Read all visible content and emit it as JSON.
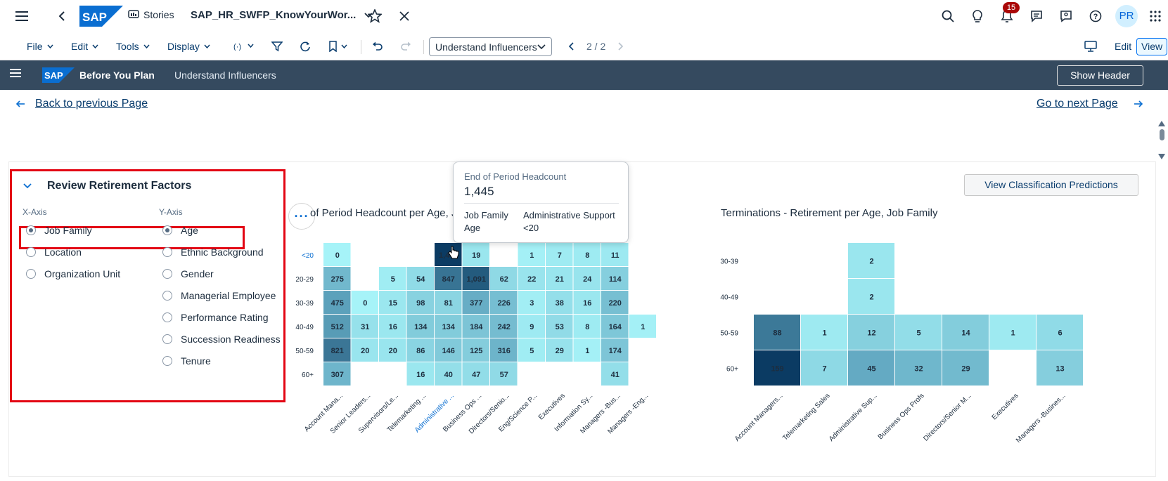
{
  "shell": {
    "stories_label": "Stories",
    "story_title": "SAP_HR_SWFP_KnowYourWor...",
    "notification_count": "15",
    "avatar_initials": "PR",
    "logo_text": "SAP"
  },
  "toolbar": {
    "file": "File",
    "edit": "Edit",
    "tools": "Tools",
    "display": "Display",
    "page_select": "Understand Influencers",
    "page_indicator": "2 / 2",
    "edit_mode": "Edit",
    "view_mode": "View"
  },
  "storybar": {
    "logo_text": "SAP",
    "title": "Before You Plan",
    "page": "Understand Influencers",
    "show_header": "Show Header"
  },
  "nav": {
    "back": "Back to previous Page",
    "next": "Go to next Page"
  },
  "panel": {
    "title": "Review Retirement Factors",
    "x_axis_label": "X-Axis",
    "y_axis_label": "Y-Axis",
    "x_options": [
      {
        "label": "Job Family",
        "selected": true
      },
      {
        "label": "Location",
        "selected": false
      },
      {
        "label": "Organization Unit",
        "selected": false
      }
    ],
    "y_options": [
      {
        "label": "Age",
        "selected": true
      },
      {
        "label": "Ethnic Background",
        "selected": false
      },
      {
        "label": "Gender",
        "selected": false
      },
      {
        "label": "Managerial Employee",
        "selected": false
      },
      {
        "label": "Performance Rating",
        "selected": false
      },
      {
        "label": "Succession Readiness",
        "selected": false
      },
      {
        "label": "Tenure",
        "selected": false
      }
    ]
  },
  "view_predictions_button": "View Classification Predictions",
  "tooltip": {
    "measure": "End of Period Headcount",
    "value": "1,445",
    "rows": [
      {
        "key": "Job Family",
        "value": "Administrative Support"
      },
      {
        "key": "Age",
        "value": "<20"
      }
    ]
  },
  "colors": {
    "accent": "#0070f2",
    "shell_dark": "#354a5f",
    "highlight_red": "#e30613",
    "heat_low": "#a6f3f8",
    "heat_high": "#0b3b63"
  },
  "chart_data": [
    {
      "type": "heatmap",
      "title": "of Period Headcount per Age, Job Family",
      "x": [
        "Account Mana...",
        "Senior Leaders...",
        "Supervisors/Le...",
        "Telemarketing ...",
        "Administrative ...",
        "Business Ops ...",
        "Directors/Senio...",
        "Eng/Science P...",
        "Executives",
        "Information Sy...",
        "Managers -Bus...",
        "Managers -Eng..."
      ],
      "y": [
        "<20",
        "20-29",
        "30-39",
        "40-49",
        "50-59",
        "60+"
      ],
      "highlighted": {
        "x": "Administrative ...",
        "y": "<20"
      },
      "values": [
        [
          0,
          null,
          null,
          null,
          1445,
          19,
          null,
          1,
          7,
          8,
          11,
          null
        ],
        [
          275,
          null,
          5,
          54,
          847,
          1091,
          62,
          22,
          21,
          24,
          114,
          null
        ],
        [
          475,
          0,
          15,
          98,
          81,
          377,
          226,
          3,
          38,
          16,
          220,
          null
        ],
        [
          512,
          31,
          16,
          134,
          134,
          184,
          242,
          9,
          53,
          8,
          164,
          1
        ],
        [
          821,
          20,
          20,
          86,
          146,
          125,
          316,
          5,
          29,
          1,
          174,
          null
        ],
        [
          307,
          null,
          null,
          16,
          40,
          47,
          57,
          null,
          null,
          null,
          41,
          null
        ]
      ],
      "cell_labels": [
        [
          "0",
          "",
          "",
          "",
          "1,445",
          "19",
          "",
          "1",
          "7",
          "8",
          "11",
          ""
        ],
        [
          "275",
          "",
          "5",
          "54",
          "847",
          "1,091",
          "62",
          "22",
          "21",
          "24",
          "114",
          ""
        ],
        [
          "475",
          "0",
          "15",
          "98",
          "81",
          "377",
          "226",
          "3",
          "38",
          "16",
          "220",
          ""
        ],
        [
          "512",
          "31",
          "16",
          "134",
          "134",
          "184",
          "242",
          "9",
          "53",
          "8",
          "164",
          "1"
        ],
        [
          "821",
          "20",
          "20",
          "86",
          "146",
          "125",
          "316",
          "5",
          "29",
          "1",
          "174",
          ""
        ],
        [
          "307",
          "",
          "",
          "16",
          "40",
          "47",
          "57",
          "",
          "",
          "",
          "41",
          ""
        ]
      ]
    },
    {
      "type": "heatmap",
      "title": "Terminations - Retirement per Age, Job Family",
      "x": [
        "Account Managers...",
        "Telemarketing Sales",
        "Administrative Sup...",
        "Business Ops Profs",
        "Directors/Senior M...",
        "Executives",
        "Managers -Busines..."
      ],
      "y": [
        "30-39",
        "40-49",
        "50-59",
        "60+"
      ],
      "values": [
        [
          null,
          null,
          2,
          null,
          null,
          null,
          null
        ],
        [
          null,
          null,
          2,
          null,
          null,
          null,
          null
        ],
        [
          88,
          1,
          12,
          5,
          14,
          1,
          6
        ],
        [
          159,
          7,
          45,
          32,
          29,
          null,
          13
        ]
      ]
    }
  ]
}
